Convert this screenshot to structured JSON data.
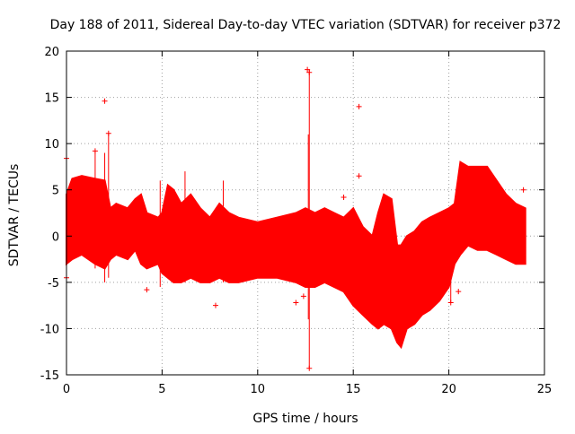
{
  "chart_data": {
    "type": "scatter",
    "title": "Day 188 of 2011, Sidereal Day-to-day VTEC variation (SDTVAR) for receiver p372",
    "xlabel": "GPS time / hours",
    "ylabel": "SDTVAR / TECUs",
    "xlim": [
      0,
      25
    ],
    "ylim": [
      -15,
      20
    ],
    "x_ticks": [
      0,
      5,
      10,
      15,
      20,
      25
    ],
    "y_ticks": [
      -15,
      -10,
      -5,
      0,
      5,
      10,
      15,
      20
    ],
    "x_tick_labels": [
      "0",
      "5",
      "10",
      "15",
      "20",
      "25"
    ],
    "y_tick_labels": [
      "-15",
      "-10",
      "-5",
      "0",
      "5",
      "10",
      "15",
      "20"
    ],
    "grid": true,
    "legend": "none",
    "marker": "+",
    "series_color": "#ff0000",
    "envelope": {
      "x": [
        0,
        0.3,
        0.8,
        1.5,
        2.0,
        2.3,
        2.6,
        3.2,
        3.6,
        3.9,
        4.2,
        4.8,
        5.0,
        5.3,
        5.6,
        6.0,
        6.5,
        7.0,
        7.5,
        8.0,
        8.5,
        9.0,
        10.0,
        11.0,
        12.0,
        12.5,
        13.0,
        13.5,
        14.0,
        14.5,
        15.0,
        15.5,
        16.0,
        16.3,
        16.6,
        17.0,
        17.3,
        17.5,
        17.8,
        18.2,
        18.6,
        19.0,
        19.5,
        20.0,
        20.3,
        20.6,
        21.0,
        21.5,
        22.0,
        22.5,
        23.0,
        23.5,
        24.0
      ],
      "upper": [
        4.5,
        6.2,
        6.5,
        6.2,
        6.0,
        3.0,
        3.5,
        3.0,
        4.0,
        4.5,
        2.5,
        2.0,
        2.5,
        5.5,
        5.0,
        3.5,
        4.5,
        3.0,
        2.0,
        3.5,
        2.5,
        2.0,
        1.5,
        2.0,
        2.5,
        3.0,
        2.5,
        3.0,
        2.5,
        2.0,
        3.0,
        1.0,
        0.0,
        2.5,
        4.5,
        4.0,
        -1.0,
        -1.0,
        0.0,
        0.5,
        1.5,
        2.0,
        2.5,
        3.0,
        3.5,
        8.0,
        7.5,
        7.5,
        7.5,
        6.0,
        4.5,
        3.5,
        3.0
      ],
      "lower": [
        -3.0,
        -2.5,
        -2.0,
        -3.0,
        -3.5,
        -2.5,
        -2.0,
        -2.5,
        -1.5,
        -3.0,
        -3.5,
        -3.0,
        -4.0,
        -4.5,
        -5.0,
        -5.0,
        -4.5,
        -5.0,
        -5.0,
        -4.5,
        -5.0,
        -5.0,
        -4.5,
        -4.5,
        -5.0,
        -5.5,
        -5.5,
        -5.0,
        -5.5,
        -6.0,
        -7.5,
        -8.5,
        -9.5,
        -10.0,
        -9.5,
        -10.0,
        -11.5,
        -12.0,
        -10.0,
        -9.5,
        -8.5,
        -8.0,
        -7.0,
        -5.5,
        -3.0,
        -2.0,
        -1.0,
        -1.5,
        -1.5,
        -2.0,
        -2.5,
        -3.0,
        -3.0
      ]
    },
    "outlier_points": [
      {
        "x": 0.0,
        "y": 8.4
      },
      {
        "x": 0.0,
        "y": -4.5
      },
      {
        "x": 2.0,
        "y": 14.6
      },
      {
        "x": 2.2,
        "y": 11.1
      },
      {
        "x": 1.5,
        "y": 9.2
      },
      {
        "x": 12.6,
        "y": 18.0
      },
      {
        "x": 12.7,
        "y": 17.7
      },
      {
        "x": 12.7,
        "y": -14.3
      },
      {
        "x": 12.4,
        "y": -6.5
      },
      {
        "x": 12.0,
        "y": -7.2
      },
      {
        "x": 15.3,
        "y": 14.0
      },
      {
        "x": 15.3,
        "y": 6.5
      },
      {
        "x": 14.5,
        "y": 4.2
      },
      {
        "x": 4.2,
        "y": -5.8
      },
      {
        "x": 7.8,
        "y": -7.5
      },
      {
        "x": 23.9,
        "y": 5.0
      },
      {
        "x": 20.5,
        "y": -6.0
      },
      {
        "x": 20.1,
        "y": -7.2
      }
    ],
    "spikes": [
      {
        "x": 12.7,
        "y_min": -14.3,
        "y_max": 18.0
      },
      {
        "x": 12.65,
        "y_min": -9.0,
        "y_max": 11.0
      },
      {
        "x": 2.2,
        "y_min": -4.5,
        "y_max": 11.1
      },
      {
        "x": 2.0,
        "y_min": -5.0,
        "y_max": 9.0
      },
      {
        "x": 1.5,
        "y_min": -3.5,
        "y_max": 9.2
      },
      {
        "x": 20.1,
        "y_min": -7.2,
        "y_max": 2.0
      },
      {
        "x": 16.9,
        "y_min": -7.5,
        "y_max": 4.0
      },
      {
        "x": 6.2,
        "y_min": -5.0,
        "y_max": 7.0
      },
      {
        "x": 8.2,
        "y_min": -5.0,
        "y_max": 6.0
      },
      {
        "x": 4.9,
        "y_min": -5.5,
        "y_max": 6.0
      }
    ]
  }
}
